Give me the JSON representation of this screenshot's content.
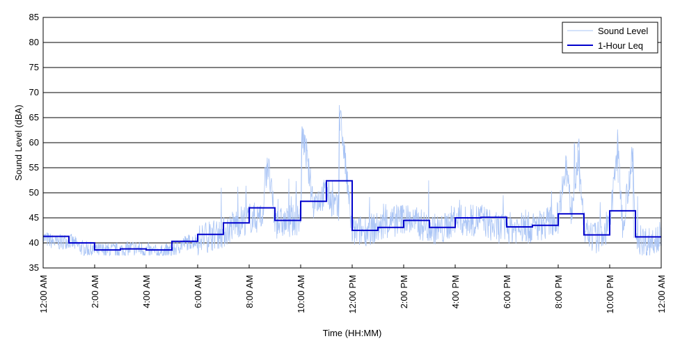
{
  "chart_data": {
    "type": "line",
    "title": "",
    "xlabel": "Time (HH:MM)",
    "ylabel": "Sound Level (dBA)",
    "x_unit": "hours",
    "xlim": [
      0,
      24
    ],
    "ylim": [
      35,
      85
    ],
    "y_ticks": [
      35,
      40,
      45,
      50,
      55,
      60,
      65,
      70,
      75,
      80,
      85
    ],
    "x_ticks": [
      0,
      2,
      4,
      6,
      8,
      10,
      12,
      14,
      16,
      18,
      20,
      22,
      24
    ],
    "x_tick_labels": [
      "12:00 AM",
      "2:00 AM",
      "4:00 AM",
      "6:00 AM",
      "8:00 AM",
      "10:00 AM",
      "12:00 PM",
      "2:00 PM",
      "4:00 PM",
      "6:00 PM",
      "8:00 PM",
      "10:00 PM",
      "12:00 AM"
    ],
    "grid": "horizontal",
    "legend_position": "top-right",
    "series": [
      {
        "name": "Sound Level",
        "color": "#a9c4f5",
        "style": "thin-line",
        "x": [
          0,
          0.5,
          1,
          1.5,
          2,
          2.5,
          3,
          3.5,
          4,
          4.5,
          5,
          5.5,
          6,
          6.5,
          7,
          7.5,
          8,
          8.5,
          8.7,
          9,
          9.5,
          10,
          10.05,
          10.5,
          11,
          11.5,
          11.5,
          12,
          12.5,
          13,
          13.5,
          14,
          14.5,
          15,
          15.5,
          16,
          16.5,
          17,
          17.5,
          18,
          18.5,
          19,
          19.5,
          20,
          20.3,
          20.5,
          20.8,
          21,
          21.5,
          22,
          22.3,
          22.5,
          22.9,
          23,
          23.5,
          24
        ],
        "values": [
          41,
          40,
          40.5,
          39,
          38.5,
          38.5,
          38.5,
          39,
          38.5,
          38,
          38.5,
          40,
          40.5,
          41.5,
          42,
          44,
          45,
          45,
          57,
          44,
          44,
          45,
          62.5,
          48,
          50,
          46,
          67.5,
          42,
          42.5,
          43,
          44,
          45,
          44,
          43,
          42.5,
          45,
          44,
          45,
          43,
          43,
          43,
          43,
          44,
          45,
          56.5,
          46,
          58.5,
          42,
          41,
          43,
          60,
          44,
          57.5,
          41,
          40,
          42
        ]
      },
      {
        "name": "1-Hour Leq",
        "color": "#0000cc",
        "style": "step",
        "x": [
          0,
          1,
          2,
          3,
          4,
          5,
          6,
          7,
          8,
          9,
          10,
          11,
          12,
          13,
          14,
          15,
          16,
          17,
          18,
          19,
          20,
          21,
          22,
          23
        ],
        "values": [
          41.3,
          40,
          38.6,
          38.8,
          38.6,
          40.3,
          41.7,
          44,
          47,
          44.5,
          48.3,
          52.4,
          42.5,
          43.1,
          44.5,
          43.1,
          45,
          45.1,
          43.2,
          43.5,
          45.8,
          41.6,
          46.4,
          41.2
        ]
      }
    ]
  }
}
